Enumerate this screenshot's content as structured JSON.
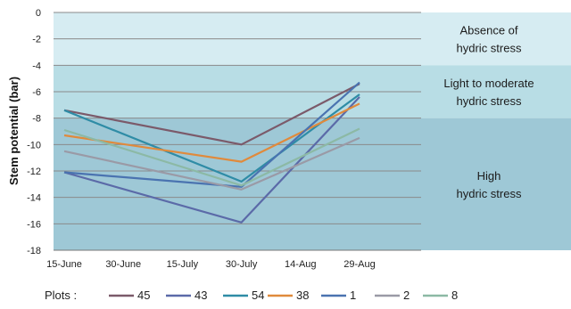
{
  "chart_data": {
    "type": "line",
    "ylabel": "Stem potential (bar)",
    "xlabel": "",
    "ylim": [
      -18,
      0
    ],
    "y_ticks": [
      0,
      -2,
      -4,
      -6,
      -8,
      -10,
      -12,
      -14,
      -16,
      -18
    ],
    "x_ticks": [
      {
        "label": "15-June",
        "day": 0
      },
      {
        "label": "30-June",
        "day": 15
      },
      {
        "label": "15-July",
        "day": 30
      },
      {
        "label": "30-July",
        "day": 45
      },
      {
        "label": "14-Aug",
        "day": 60
      },
      {
        "label": "29-Aug",
        "day": 75
      }
    ],
    "grid": true,
    "zones": [
      {
        "from": 0,
        "to": -4,
        "color": "#d6ecf2",
        "lines": [
          "Absence of",
          "hydric stress"
        ]
      },
      {
        "from": -4,
        "to": -8,
        "color": "#b8dde5",
        "lines": [
          "Light to moderate",
          "hydric stress"
        ]
      },
      {
        "from": -8,
        "to": -18,
        "color": "#9ec8d6",
        "lines": [
          "High",
          "hydric stress"
        ]
      }
    ],
    "dates": [
      "15-June",
      "30-July",
      "29-Aug"
    ],
    "series": [
      {
        "name": "45",
        "color": "#7b5a6a",
        "values": [
          -7.4,
          -10.0,
          -5.4
        ]
      },
      {
        "name": "43",
        "color": "#5b6aa8",
        "values": [
          -12.1,
          -15.9,
          -6.4
        ]
      },
      {
        "name": "54",
        "color": "#2f8ca6",
        "values": [
          -7.4,
          -12.8,
          -6.2
        ]
      },
      {
        "name": "38",
        "color": "#e08a3c",
        "values": [
          -9.3,
          -11.3,
          -6.9
        ]
      },
      {
        "name": "1",
        "color": "#4a73b0",
        "values": [
          -12.1,
          -13.2,
          -5.3
        ]
      },
      {
        "name": "2",
        "color": "#9a9aa6",
        "values": [
          -10.5,
          -13.4,
          -9.5
        ]
      },
      {
        "name": "8",
        "color": "#8cb9a5",
        "values": [
          -8.9,
          -13.1,
          -8.8
        ]
      }
    ],
    "legend": {
      "title": "Plots :",
      "position": "bottom"
    }
  }
}
